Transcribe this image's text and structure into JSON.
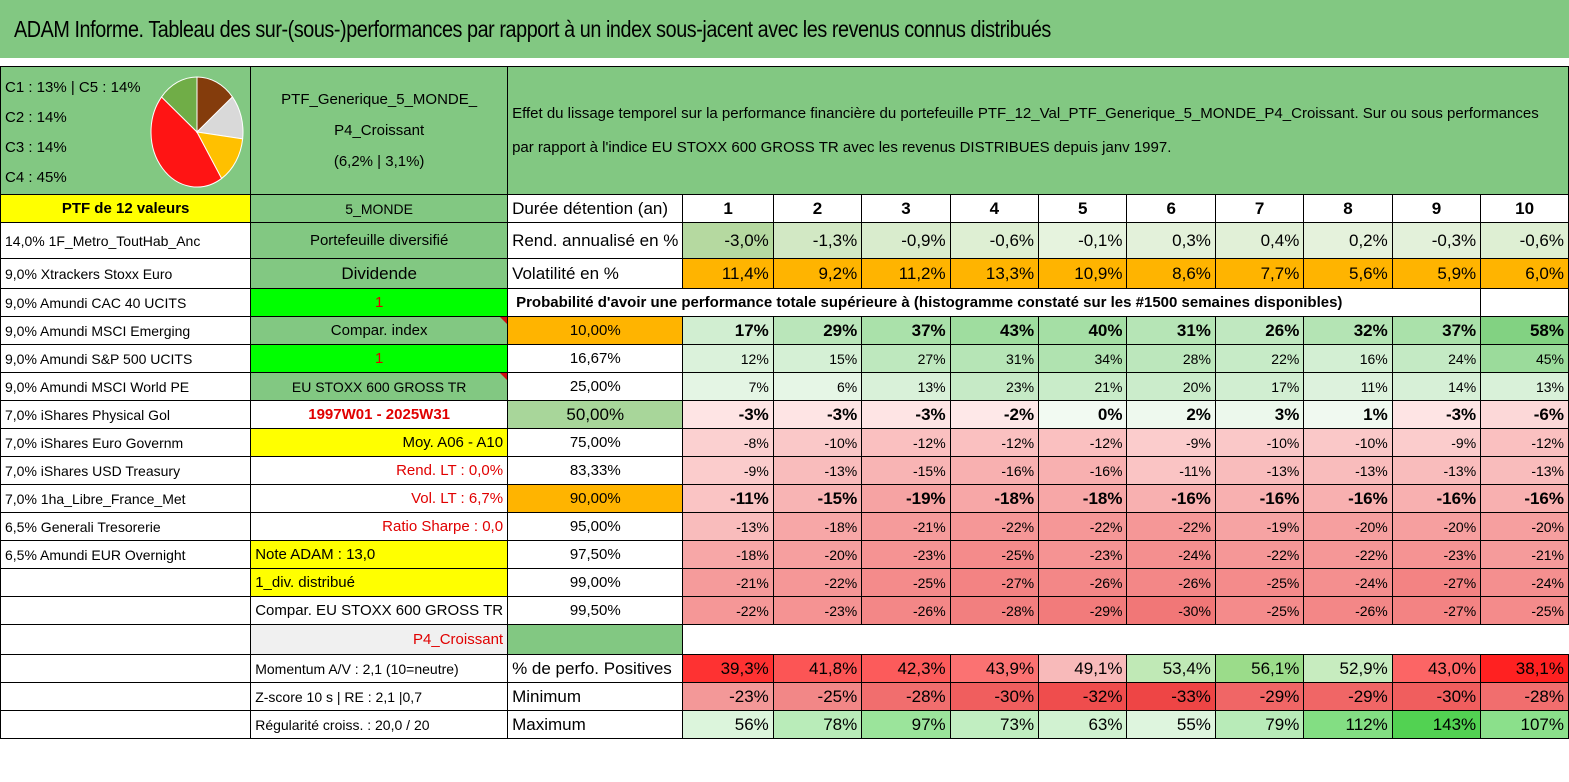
{
  "title": "ADAM Informe. Tableau des sur-(sous-)performances par rapport à un index sous-jacent avec les revenus connus distribués",
  "pie": {
    "labels": [
      "C1 : 13% | C5 : 14%",
      "C2 : 14%",
      "C3 : 14%",
      "C4 : 45%"
    ],
    "slices": [
      {
        "value": 45,
        "color": "#ff1414"
      },
      {
        "value": 14,
        "color": "#70ad47"
      },
      {
        "value": 14,
        "color": "#843c0c"
      },
      {
        "value": 13,
        "color": "#d9d9d9"
      },
      {
        "value": 14,
        "color": "#ffc000"
      }
    ]
  },
  "ptf": {
    "name_line1": "PTF_Generique_5_MONDE_",
    "name_line2": "P4_Croissant",
    "name_line3": "(6,2% | 3,1%)"
  },
  "description": "Effet du lissage temporel sur la performance financière du portefeuille PTF_12_Val_PTF_Generique_5_MONDE_P4_Croissant. Sur ou sous performances par rapport à l'indice EU STOXX 600 GROSS TR avec les revenus DISTRIBUES depuis janv 1997.",
  "ptf_header": "PTF de 12 valeurs",
  "holdings": [
    "14,0% 1F_Metro_ToutHab_Anc",
    "9,0% Xtrackers Stoxx Euro",
    "9,0% Amundi CAC 40 UCITS",
    "9,0% Amundi MSCI Emerging",
    "9,0% Amundi S&P 500 UCITS",
    "9,0% Amundi MSCI World PE",
    "7,0% iShares Physical Gol",
    "7,0% iShares Euro Governm",
    "7,0% iShares USD Treasury",
    "7,0% 1ha_Libre_France_Met",
    "6,5% Generali Tresorerie",
    "6,5% Amundi EUR Overnight",
    "",
    ""
  ],
  "info": [
    "5_MONDE",
    "Portefeuille diversifié",
    "Dividende",
    "1",
    "Compar. index",
    "1",
    "EU STOXX 600 GROSS TR",
    "1997W01 - 2025W31",
    "Moy. A06 - A10",
    "Rend. LT : 0,0%",
    "Vol. LT : 6,7%",
    "Ratio Sharpe : 0,0",
    "Note ADAM : 13,0",
    "1_div. distribué",
    "Compar. EU STOXX 600 GROSS TR",
    "P4_Croissant",
    "Momentum A/V : 2,1 (10=neutre)",
    "Z-score 10 s | RE : 2,1 |0,7",
    "Régularité croiss. : 20,0 / 20"
  ],
  "labels": {
    "duree": "Durée détention (an)",
    "rend": "Rend. annualisé en %",
    "vol": "Volatilité en %",
    "proba": "Probabilité d'avoir une performance totale supérieure à (histogramme constaté sur les #1500 semaines disponibles)",
    "pos": "% de perfo. Positives",
    "min": "Minimum",
    "max": "Maximum"
  },
  "years": [
    "1",
    "2",
    "3",
    "4",
    "5",
    "6",
    "7",
    "8",
    "9",
    "10"
  ],
  "rend": [
    "-3,0%",
    "-1,3%",
    "-0,9%",
    "-0,6%",
    "-0,1%",
    "0,3%",
    "0,4%",
    "0,2%",
    "-0,3%",
    "-0,6%"
  ],
  "vol": [
    "11,4%",
    "9,2%",
    "11,2%",
    "13,3%",
    "10,9%",
    "8,6%",
    "7,7%",
    "5,6%",
    "5,9%",
    "6,0%"
  ],
  "proba_rows": [
    {
      "p": "10,00%",
      "v": [
        "17%",
        "29%",
        "37%",
        "43%",
        "40%",
        "31%",
        "26%",
        "32%",
        "37%",
        "58%"
      ]
    },
    {
      "p": "16,67%",
      "v": [
        "12%",
        "15%",
        "27%",
        "31%",
        "34%",
        "28%",
        "22%",
        "16%",
        "24%",
        "45%"
      ]
    },
    {
      "p": "25,00%",
      "v": [
        "7%",
        "6%",
        "13%",
        "23%",
        "21%",
        "20%",
        "17%",
        "11%",
        "14%",
        "13%"
      ]
    },
    {
      "p": "50,00%",
      "v": [
        "-3%",
        "-3%",
        "-3%",
        "-2%",
        "0%",
        "2%",
        "3%",
        "1%",
        "-3%",
        "-6%"
      ]
    },
    {
      "p": "75,00%",
      "v": [
        "-8%",
        "-10%",
        "-12%",
        "-12%",
        "-12%",
        "-9%",
        "-10%",
        "-10%",
        "-9%",
        "-12%"
      ]
    },
    {
      "p": "83,33%",
      "v": [
        "-9%",
        "-13%",
        "-15%",
        "-16%",
        "-16%",
        "-11%",
        "-13%",
        "-13%",
        "-13%",
        "-13%"
      ]
    },
    {
      "p": "90,00%",
      "v": [
        "-11%",
        "-15%",
        "-19%",
        "-18%",
        "-18%",
        "-16%",
        "-16%",
        "-16%",
        "-16%",
        "-16%"
      ]
    },
    {
      "p": "95,00%",
      "v": [
        "-13%",
        "-18%",
        "-21%",
        "-22%",
        "-22%",
        "-22%",
        "-19%",
        "-20%",
        "-20%",
        "-20%"
      ]
    },
    {
      "p": "97,50%",
      "v": [
        "-18%",
        "-20%",
        "-23%",
        "-25%",
        "-23%",
        "-24%",
        "-22%",
        "-22%",
        "-23%",
        "-21%"
      ]
    },
    {
      "p": "99,00%",
      "v": [
        "-21%",
        "-22%",
        "-25%",
        "-27%",
        "-26%",
        "-26%",
        "-25%",
        "-24%",
        "-27%",
        "-24%"
      ]
    },
    {
      "p": "99,50%",
      "v": [
        "-22%",
        "-23%",
        "-26%",
        "-28%",
        "-29%",
        "-30%",
        "-25%",
        "-26%",
        "-27%",
        "-25%"
      ]
    }
  ],
  "pos": [
    "39,3%",
    "41,8%",
    "42,3%",
    "43,9%",
    "49,1%",
    "53,4%",
    "56,1%",
    "52,9%",
    "43,0%",
    "38,1%"
  ],
  "min": [
    "-23%",
    "-25%",
    "-28%",
    "-30%",
    "-32%",
    "-33%",
    "-29%",
    "-29%",
    "-30%",
    "-28%"
  ],
  "max": [
    "56%",
    "78%",
    "97%",
    "73%",
    "63%",
    "55%",
    "79%",
    "112%",
    "143%",
    "107%"
  ],
  "colors": {
    "green": "#82c882",
    "yellow": "#ffff00",
    "orange": "#ffb400",
    "bright_green": "#00ff00",
    "red": "#ff0000"
  }
}
